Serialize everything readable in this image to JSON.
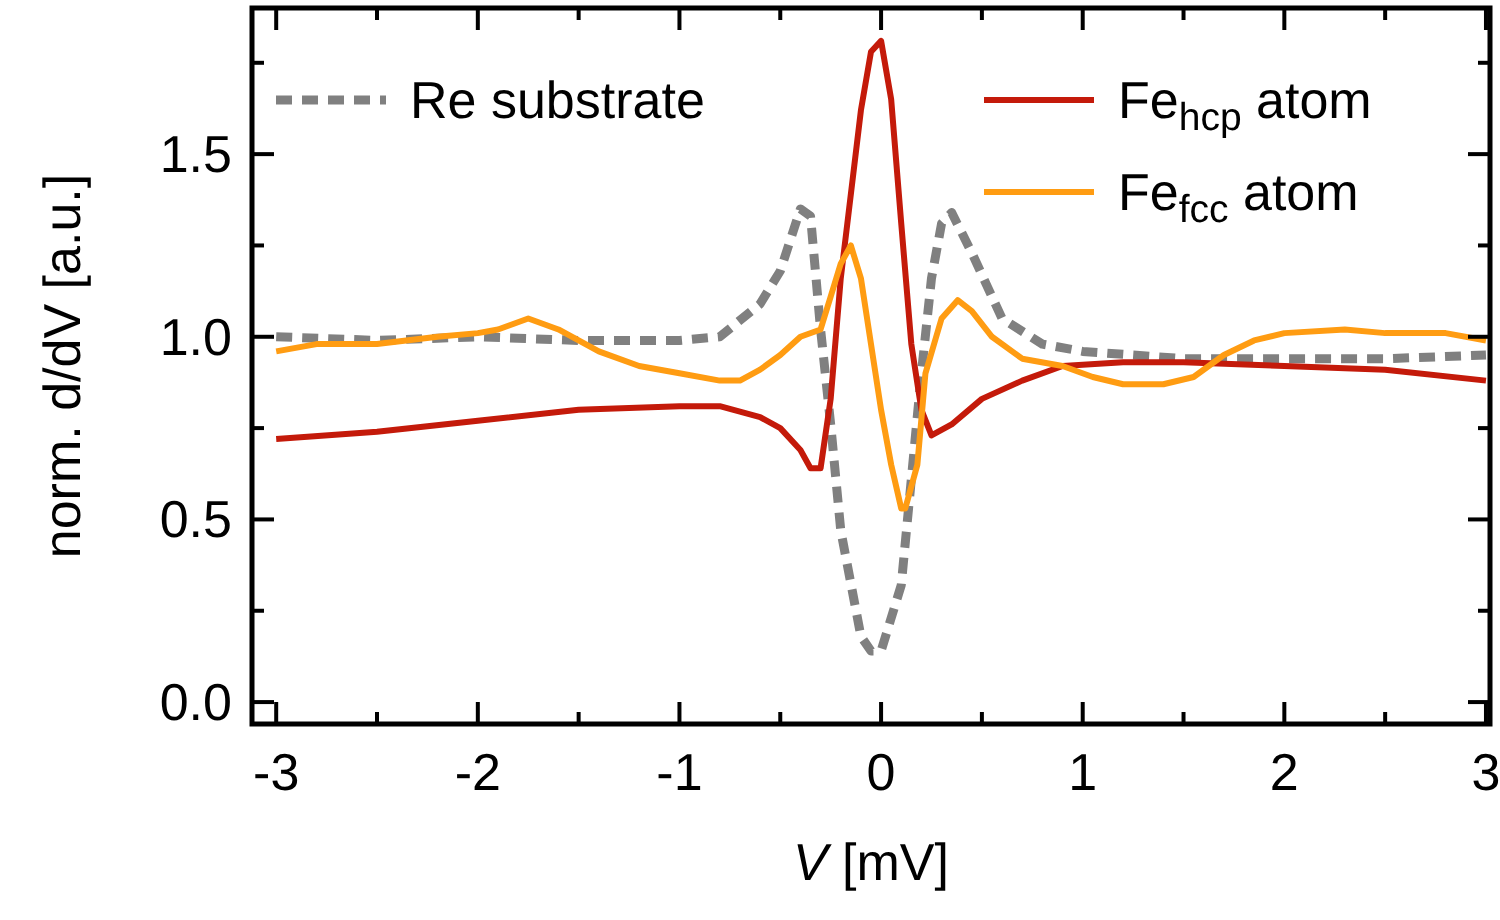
{
  "chart_data": {
    "type": "line",
    "xlabel": "V [mV]",
    "ylabel": "norm. d/dV [a.u.]",
    "xlim": [
      -3.12,
      3.02
    ],
    "ylim": [
      -0.06,
      1.9
    ],
    "xticks": [
      -3,
      {
        "value": -2.5,
        "label": null
      },
      -2,
      {
        "value": -1.5,
        "label": null
      },
      -1,
      {
        "value": -0.5,
        "label": null
      },
      0,
      {
        "value": 0.5,
        "label": null
      },
      1,
      {
        "value": 1.5,
        "label": null
      },
      2,
      {
        "value": 2.5,
        "label": null
      },
      3
    ],
    "yticks": [
      {
        "value": 0,
        "label": "0.0"
      },
      {
        "value": 0.25,
        "label": null
      },
      {
        "value": 0.5,
        "label": "0.5"
      },
      {
        "value": 0.75,
        "label": null
      },
      {
        "value": 1,
        "label": "1.0"
      },
      {
        "value": 1.25,
        "label": null
      },
      {
        "value": 1.5,
        "label": "1.5"
      },
      {
        "value": 1.75,
        "label": null
      }
    ],
    "grid": false,
    "legend": "top",
    "marker": "none",
    "series": [
      {
        "name": "Re substrate",
        "color": "#808080",
        "line_style": "dotted",
        "x": [
          -3,
          -2.5,
          -2,
          -1.5,
          -1,
          -0.8,
          -0.6,
          -0.5,
          -0.4,
          -0.35,
          -0.3,
          -0.25,
          -0.2,
          -0.1,
          -0.05,
          0,
          0.1,
          0.15,
          0.2,
          0.25,
          0.3,
          0.35,
          0.45,
          0.6,
          0.8,
          1,
          1.5,
          2,
          2.5,
          3
        ],
        "values": [
          1.0,
          0.99,
          1.0,
          0.99,
          0.99,
          1.0,
          1.09,
          1.18,
          1.35,
          1.33,
          1.02,
          0.76,
          0.47,
          0.18,
          0.14,
          0.14,
          0.32,
          0.61,
          0.9,
          1.16,
          1.31,
          1.34,
          1.23,
          1.05,
          0.98,
          0.96,
          0.94,
          0.94,
          0.94,
          0.95
        ]
      },
      {
        "name": "Fe$_{hcp}$ atom",
        "color": "#c41a0a",
        "line_style": "solid",
        "x": [
          -3,
          -2.5,
          -2,
          -1.5,
          -1,
          -0.8,
          -0.6,
          -0.5,
          -0.4,
          -0.35,
          -0.3,
          -0.25,
          -0.2,
          -0.1,
          -0.05,
          0,
          0.05,
          0.1,
          0.15,
          0.2,
          0.25,
          0.35,
          0.5,
          0.7,
          0.9,
          1.2,
          1.5,
          2,
          2.5,
          3
        ],
        "values": [
          0.72,
          0.74,
          0.77,
          0.8,
          0.81,
          0.81,
          0.78,
          0.75,
          0.69,
          0.64,
          0.64,
          0.83,
          1.16,
          1.62,
          1.78,
          1.81,
          1.65,
          1.31,
          0.98,
          0.8,
          0.73,
          0.76,
          0.83,
          0.88,
          0.92,
          0.93,
          0.93,
          0.92,
          0.91,
          0.88
        ]
      },
      {
        "name": "Fe$_{fcc}$ atom",
        "color": "#ff9c12",
        "line_style": "solid",
        "x": [
          -3,
          -2.8,
          -2.5,
          -2.2,
          -2,
          -1.9,
          -1.75,
          -1.6,
          -1.4,
          -1.2,
          -1,
          -0.8,
          -0.7,
          -0.6,
          -0.5,
          -0.4,
          -0.3,
          -0.25,
          -0.2,
          -0.15,
          -0.1,
          -0.05,
          0,
          0.05,
          0.1,
          0.12,
          0.18,
          0.22,
          0.3,
          0.38,
          0.45,
          0.55,
          0.7,
          0.9,
          1.05,
          1.2,
          1.4,
          1.55,
          1.7,
          1.85,
          2,
          2.3,
          2.5,
          2.8,
          3
        ],
        "values": [
          0.96,
          0.98,
          0.98,
          1.0,
          1.01,
          1.02,
          1.05,
          1.02,
          0.96,
          0.92,
          0.9,
          0.88,
          0.88,
          0.91,
          0.95,
          1.0,
          1.02,
          1.11,
          1.2,
          1.25,
          1.16,
          0.98,
          0.8,
          0.65,
          0.53,
          0.53,
          0.65,
          0.9,
          1.05,
          1.1,
          1.07,
          1.0,
          0.94,
          0.92,
          0.89,
          0.87,
          0.87,
          0.89,
          0.95,
          0.99,
          1.01,
          1.02,
          1.01,
          1.01,
          0.99
        ]
      }
    ]
  }
}
